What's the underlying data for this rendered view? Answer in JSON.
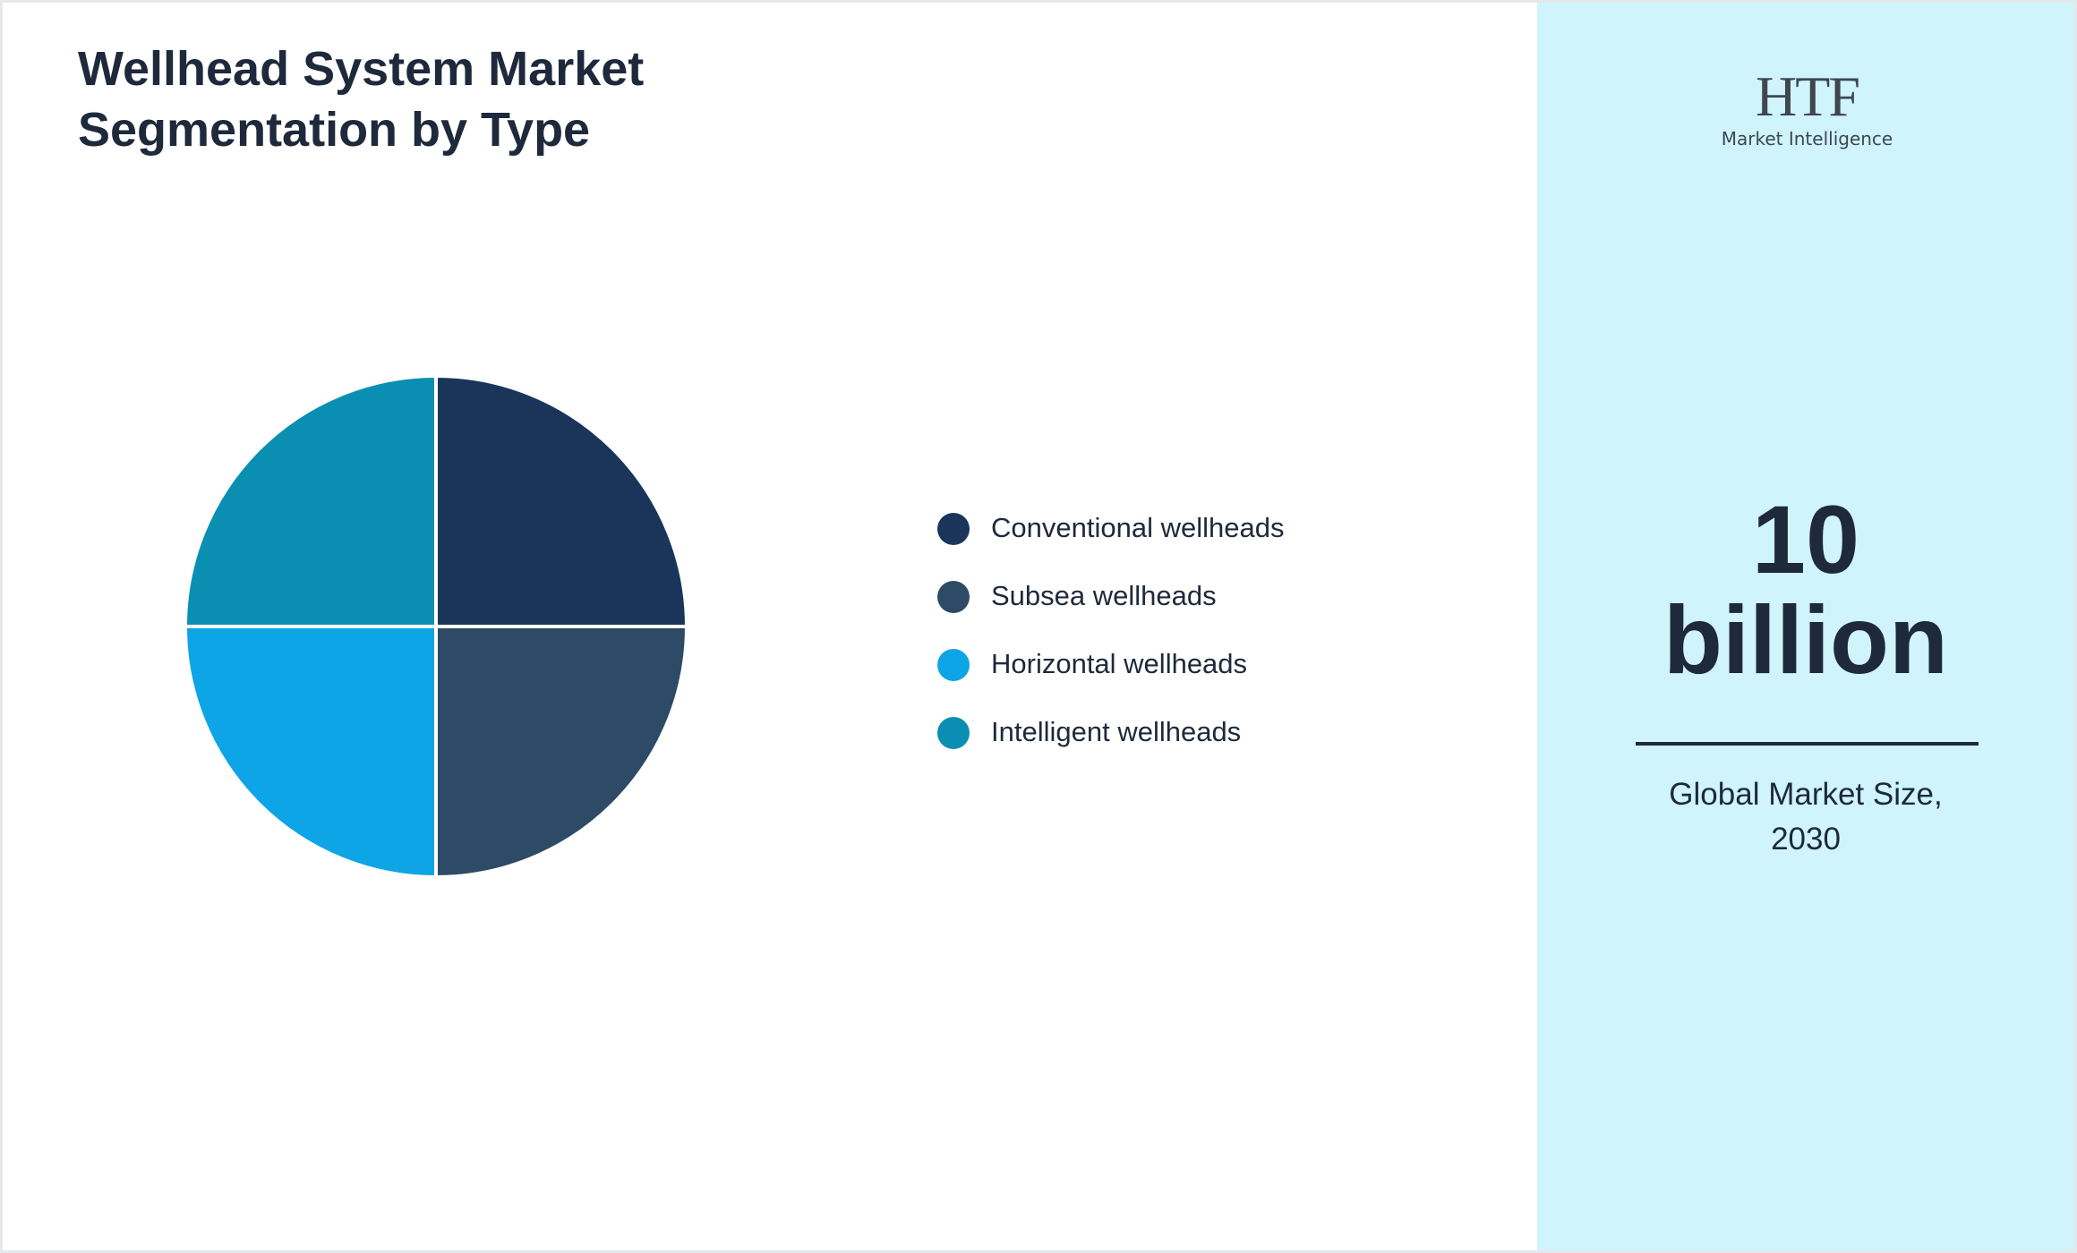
{
  "chart_data": {
    "type": "pie",
    "title": "Wellhead System Market Segmentation by Type",
    "categories": [
      "Conventional wellheads",
      "Subsea wellheads",
      "Horizontal wellheads",
      "Intelligent wellheads"
    ],
    "values": [
      25,
      25,
      25,
      25
    ],
    "colors": [
      "#1b355a",
      "#2d4a66",
      "#0ea5e6",
      "#0a8fb3"
    ]
  },
  "side_panel": {
    "logo": {
      "text": "HTF",
      "subtext": "Market Intelligence"
    },
    "headline": "10 billion",
    "caption": "Global Market Size, 2030"
  }
}
